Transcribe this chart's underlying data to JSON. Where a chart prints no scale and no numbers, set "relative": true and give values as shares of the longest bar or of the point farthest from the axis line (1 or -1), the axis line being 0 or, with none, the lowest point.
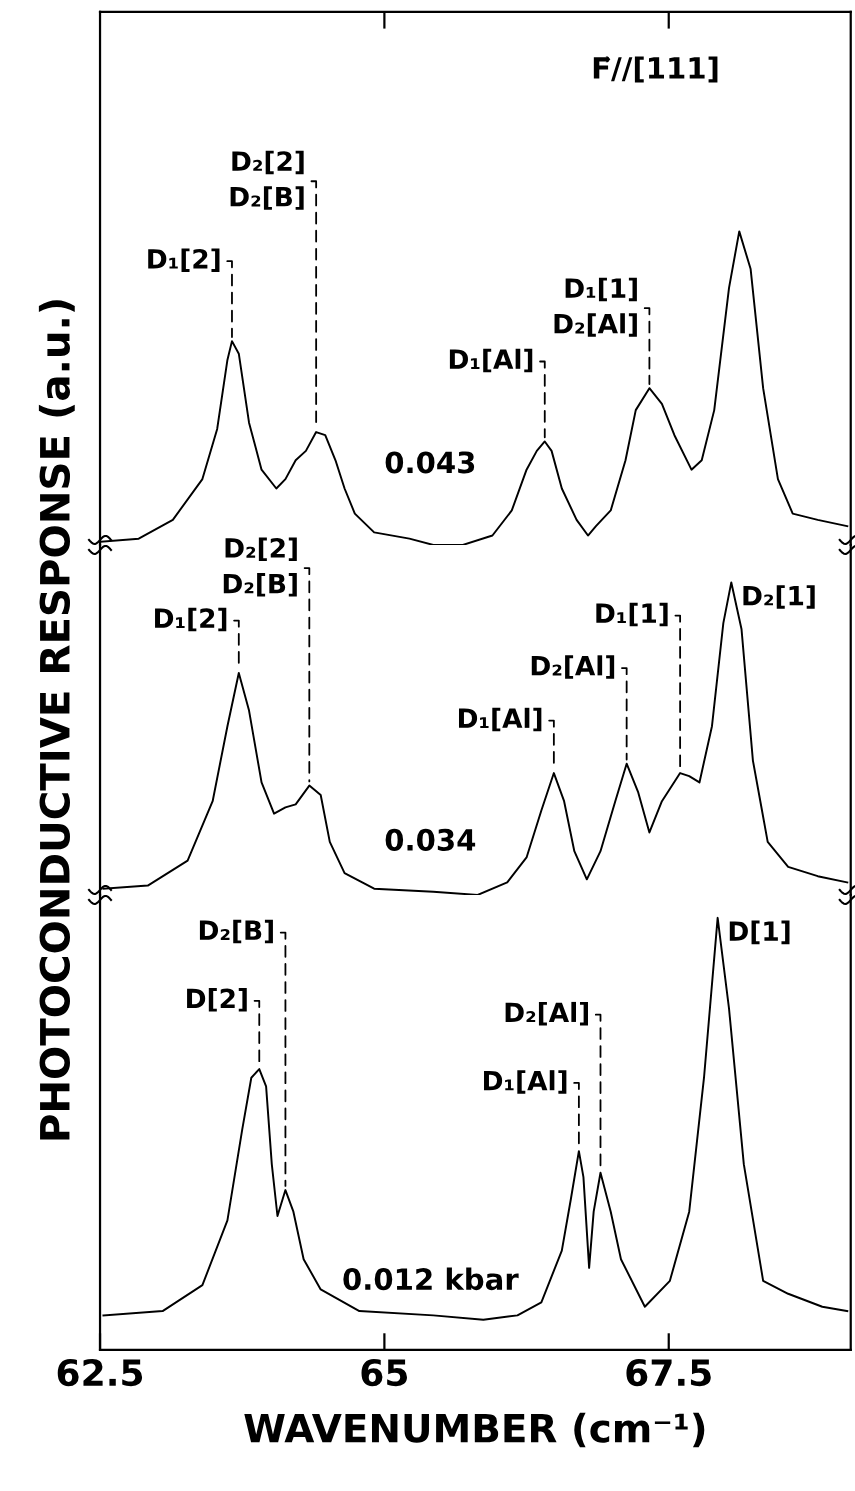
{
  "chart_data": [
    {
      "type": "line",
      "relative": true,
      "tick_labels": false,
      "xlim": [
        62.5,
        69.1
      ],
      "xticks": [
        {
          "value": 65,
          "label": null
        },
        {
          "value": 67.5,
          "label": null
        }
      ],
      "x": [
        62.51,
        62.84,
        63.14,
        63.4,
        63.53,
        63.62,
        63.66,
        63.72,
        63.81,
        63.92,
        64.05,
        64.13,
        64.22,
        64.31,
        64.4,
        64.48,
        64.57,
        64.65,
        64.74,
        64.91,
        65.22,
        65.43,
        65.69,
        65.95,
        66.12,
        66.25,
        66.34,
        66.41,
        66.47,
        66.56,
        66.69,
        66.79,
        66.86,
        66.99,
        67.12,
        67.21,
        67.33,
        67.44,
        67.55,
        67.7,
        67.79,
        67.9,
        68.03,
        68.12,
        68.22,
        68.33,
        68.46,
        68.59,
        68.81,
        69.07
      ],
      "series": [
        {
          "color": "#000000",
          "values": [
            0.01,
            0.02,
            0.08,
            0.21,
            0.37,
            0.59,
            0.65,
            0.61,
            0.39,
            0.24,
            0.18,
            0.21,
            0.27,
            0.3,
            0.36,
            0.35,
            0.27,
            0.18,
            0.1,
            0.04,
            0.02,
            0,
            0.0,
            0.03,
            0.11,
            0.24,
            0.3,
            0.33,
            0.3,
            0.18,
            0.08,
            0.03,
            0.06,
            0.11,
            0.27,
            0.43,
            0.5,
            0.45,
            0.35,
            0.24,
            0.27,
            0.43,
            0.82,
            1,
            0.88,
            0.5,
            0.21,
            0.1,
            0.08,
            0.06
          ]
        }
      ],
      "annotations": [
        {
          "text": "D₁[2]",
          "x": 63.66,
          "y": 0.65
        },
        {
          "text": "D₂[2]\nD₂[B]",
          "x": 64.4,
          "y": 0.36
        },
        {
          "text": "D₁[Al]",
          "x": 66.41,
          "y": 0.33
        },
        {
          "text": "D₁[1]\nD₂[Al]",
          "x": 67.33,
          "y": 0.5
        },
        "0.043",
        "F⃗//[111]"
      ]
    },
    {
      "type": "line",
      "relative": true,
      "tick_labels": false,
      "xlim": [
        62.5,
        69.1
      ],
      "ylabel": "PHOTOCONDUCTIVE RESPONSE (a.u.)",
      "x": [
        62.53,
        62.92,
        63.27,
        63.49,
        63.62,
        63.72,
        63.81,
        63.92,
        64.03,
        64.13,
        64.22,
        64.34,
        64.44,
        64.52,
        64.65,
        64.91,
        65.43,
        65.82,
        66.08,
        66.25,
        66.38,
        66.49,
        66.58,
        66.67,
        66.78,
        66.9,
        67.03,
        67.13,
        67.23,
        67.33,
        67.44,
        67.6,
        67.68,
        67.77,
        67.88,
        67.98,
        68.05,
        68.14,
        68.24,
        68.37,
        68.55,
        68.81,
        69.07
      ],
      "series": [
        {
          "color": "#000000",
          "values": [
            0.02,
            0.03,
            0.11,
            0.3,
            0.54,
            0.71,
            0.59,
            0.36,
            0.26,
            0.28,
            0.29,
            0.35,
            0.32,
            0.17,
            0.07,
            0.02,
            0.01,
            0,
            0.04,
            0.12,
            0.27,
            0.39,
            0.3,
            0.14,
            0.05,
            0.14,
            0.3,
            0.42,
            0.33,
            0.2,
            0.3,
            0.39,
            0.38,
            0.36,
            0.54,
            0.87,
            1,
            0.85,
            0.43,
            0.17,
            0.09,
            0.06,
            0.04
          ]
        }
      ],
      "annotations": [
        {
          "text": "D₁[2]",
          "x": 63.72,
          "y": 0.71
        },
        {
          "text": "D₂[2]\nD₂[B]",
          "x": 64.34,
          "y": 0.35
        },
        {
          "text": "D₁[Al]",
          "x": 66.49,
          "y": 0.39
        },
        {
          "text": "D₂[Al]",
          "x": 67.13,
          "y": 0.42
        },
        {
          "text": "D₁[1]",
          "x": 67.6,
          "y": 0.39
        },
        {
          "text": "D₂[1]",
          "x": 68.05,
          "y": 1
        },
        "0.034"
      ]
    },
    {
      "type": "line",
      "relative": true,
      "tick_labels": "x",
      "xlim": [
        62.5,
        69.1
      ],
      "xticks": [
        62.5,
        65,
        67.5
      ],
      "xlabel": "WAVENUMBER (cm⁻¹)",
      "x": [
        62.53,
        63.05,
        63.4,
        63.62,
        63.75,
        63.83,
        63.9,
        63.96,
        64.01,
        64.06,
        64.13,
        64.2,
        64.29,
        64.44,
        64.78,
        65.43,
        65.87,
        66.17,
        66.38,
        66.56,
        66.64,
        66.71,
        66.75,
        66.8,
        66.84,
        66.9,
        66.99,
        67.08,
        67.29,
        67.51,
        67.68,
        67.81,
        67.93,
        68.03,
        68.16,
        68.33,
        68.55,
        68.85,
        69.07
      ],
      "series": [
        {
          "color": "#000000",
          "values": [
            0.08,
            0.09,
            0.15,
            0.3,
            0.51,
            0.63,
            0.65,
            0.61,
            0.43,
            0.31,
            0.37,
            0.32,
            0.21,
            0.14,
            0.09,
            0.08,
            0.07,
            0.08,
            0.11,
            0.23,
            0.35,
            0.46,
            0.4,
            0.19,
            0.32,
            0.41,
            0.32,
            0.21,
            0.1,
            0.16,
            0.32,
            0.63,
            1,
            0.79,
            0.43,
            0.16,
            0.13,
            0.1,
            0.09
          ]
        }
      ],
      "annotations": [
        {
          "text": "D[2]",
          "x": 63.9,
          "y": 0.65
        },
        {
          "text": "D₂[B]",
          "x": 64.13,
          "y": 0.37
        },
        {
          "text": "D₁[Al]",
          "x": 66.71,
          "y": 0.46
        },
        {
          "text": "D₂[Al]",
          "x": 66.9,
          "y": 0.41
        },
        {
          "text": "D[1]",
          "x": 67.93,
          "y": 1
        },
        "0.012 kbar"
      ]
    }
  ]
}
